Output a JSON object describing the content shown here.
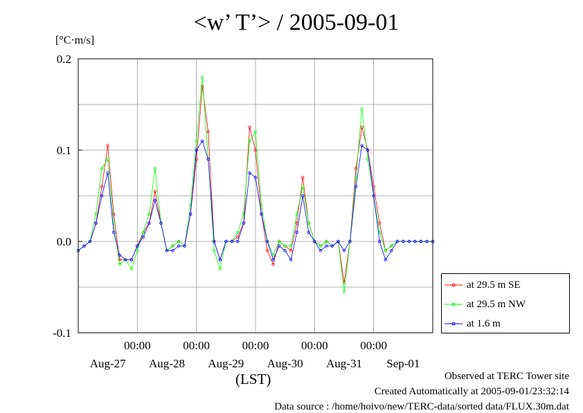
{
  "chart_data": {
    "type": "line",
    "title": "<w’ T’> / 2005-09-01",
    "ylabel_unit": "[°C·m/s]",
    "xlabel": "(LST)",
    "ylim": [
      -0.1,
      0.2
    ],
    "xlim_days": [
      0,
      6
    ],
    "yticks": [
      "-0.1",
      "0.0",
      "0.1",
      "0.2"
    ],
    "time_ticks": [
      "00:00",
      "00:00",
      "00:00",
      "00:00",
      "00:00"
    ],
    "date_ticks": [
      "Aug-27",
      "Aug-28",
      "Aug-29",
      "Aug-30",
      "Aug-31",
      "Sep-01"
    ],
    "grid": true,
    "legend_position": "right",
    "series": [
      {
        "name": "at 29.5 m SE",
        "color": "#ff0000",
        "x": [
          0.0,
          0.1,
          0.2,
          0.3,
          0.4,
          0.5,
          0.6,
          0.7,
          0.8,
          0.9,
          1.0,
          1.1,
          1.2,
          1.3,
          1.4,
          1.5,
          1.6,
          1.7,
          1.8,
          1.9,
          2.0,
          2.1,
          2.2,
          2.3,
          2.4,
          2.5,
          2.6,
          2.7,
          2.8,
          2.9,
          3.0,
          3.1,
          3.2,
          3.3,
          3.4,
          3.5,
          3.6,
          3.7,
          3.8,
          3.9,
          4.0,
          4.1,
          4.2,
          4.3,
          4.4,
          4.5,
          4.6,
          4.7,
          4.8,
          4.9,
          5.0,
          5.1,
          5.2,
          5.3,
          5.4,
          5.5,
          5.6,
          5.7,
          5.8,
          5.9,
          6.0
        ],
        "y": [
          -0.01,
          -0.005,
          0.0,
          0.02,
          0.06,
          0.105,
          0.03,
          -0.02,
          -0.02,
          -0.02,
          -0.005,
          0.01,
          0.02,
          0.055,
          0.02,
          -0.01,
          -0.005,
          0.0,
          -0.005,
          0.03,
          0.09,
          0.17,
          0.12,
          0.0,
          -0.02,
          0.0,
          0.0,
          0.005,
          0.02,
          0.125,
          0.1,
          0.03,
          -0.01,
          -0.025,
          0.0,
          -0.005,
          -0.01,
          0.02,
          0.07,
          0.02,
          0.0,
          -0.005,
          0.0,
          -0.005,
          0.0,
          -0.045,
          0.0,
          0.08,
          0.125,
          0.1,
          0.06,
          0.02,
          -0.01,
          -0.005,
          0.0,
          0.0,
          0.0,
          0.0,
          0.0,
          0.0,
          0.0
        ]
      },
      {
        "name": "at 29.5 m NW",
        "color": "#00ff00",
        "x": [
          0.0,
          0.1,
          0.2,
          0.3,
          0.4,
          0.5,
          0.6,
          0.7,
          0.8,
          0.9,
          1.0,
          1.1,
          1.2,
          1.3,
          1.4,
          1.5,
          1.6,
          1.7,
          1.8,
          1.9,
          2.0,
          2.1,
          2.2,
          2.3,
          2.4,
          2.5,
          2.6,
          2.7,
          2.8,
          2.9,
          3.0,
          3.1,
          3.2,
          3.3,
          3.4,
          3.5,
          3.6,
          3.7,
          3.8,
          3.9,
          4.0,
          4.1,
          4.2,
          4.3,
          4.4,
          4.5,
          4.6,
          4.7,
          4.8,
          4.9,
          5.0,
          5.1,
          5.2,
          5.3,
          5.4,
          5.5,
          5.6,
          5.7,
          5.8,
          5.9,
          6.0
        ],
        "y": [
          -0.01,
          -0.005,
          0.0,
          0.03,
          0.08,
          0.09,
          0.02,
          -0.025,
          -0.02,
          -0.03,
          -0.01,
          0.01,
          0.03,
          0.08,
          0.02,
          -0.01,
          -0.005,
          0.0,
          -0.005,
          0.04,
          0.11,
          0.18,
          0.09,
          -0.01,
          -0.03,
          0.0,
          0.0,
          0.01,
          0.03,
          0.11,
          0.12,
          0.04,
          0.0,
          -0.015,
          0.0,
          -0.005,
          -0.005,
          0.03,
          0.06,
          0.02,
          0.0,
          -0.005,
          0.0,
          -0.005,
          0.0,
          -0.055,
          0.0,
          0.07,
          0.145,
          0.09,
          0.05,
          0.01,
          -0.01,
          -0.005,
          0.0,
          0.0,
          0.0,
          0.0,
          0.0,
          0.0,
          0.0
        ]
      },
      {
        "name": "at 1.6 m",
        "color": "#0000ff",
        "x": [
          0.0,
          0.1,
          0.2,
          0.3,
          0.4,
          0.5,
          0.6,
          0.7,
          0.8,
          0.9,
          1.0,
          1.1,
          1.2,
          1.3,
          1.4,
          1.5,
          1.6,
          1.7,
          1.8,
          1.9,
          2.0,
          2.1,
          2.2,
          2.3,
          2.4,
          2.5,
          2.6,
          2.7,
          2.8,
          2.9,
          3.0,
          3.1,
          3.2,
          3.3,
          3.4,
          3.5,
          3.6,
          3.7,
          3.8,
          3.9,
          4.0,
          4.1,
          4.2,
          4.3,
          4.4,
          4.5,
          4.6,
          4.7,
          4.8,
          4.9,
          5.0,
          5.1,
          5.2,
          5.3,
          5.4,
          5.5,
          5.6,
          5.7,
          5.8,
          5.9,
          6.0
        ],
        "y": [
          -0.01,
          -0.005,
          0.0,
          0.02,
          0.05,
          0.075,
          0.01,
          -0.015,
          -0.02,
          -0.02,
          -0.005,
          0.005,
          0.02,
          0.045,
          0.02,
          -0.01,
          -0.01,
          -0.005,
          -0.005,
          0.03,
          0.1,
          0.11,
          0.09,
          0.0,
          -0.02,
          0.0,
          0.0,
          0.0,
          0.02,
          0.075,
          0.07,
          0.03,
          0.0,
          -0.02,
          -0.005,
          -0.01,
          -0.02,
          0.01,
          0.05,
          0.01,
          0.0,
          -0.01,
          -0.005,
          -0.005,
          0.0,
          -0.01,
          0.0,
          0.06,
          0.105,
          0.1,
          0.05,
          0.0,
          -0.02,
          -0.01,
          0.0,
          0.0,
          0.0,
          0.0,
          0.0,
          0.0,
          0.0
        ]
      }
    ]
  },
  "footer": {
    "observed": "Observed at TERC Tower site",
    "created": "Created Automatically at 2005-09-01/23:32:14",
    "source": "Data source : /home/hoivo/new/TERC-data/sorted  data/FLUX.30m.dat"
  }
}
